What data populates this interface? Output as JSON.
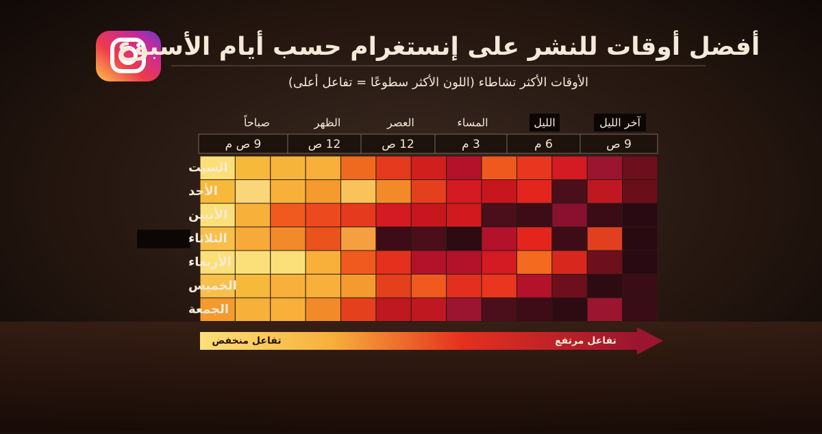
{
  "header": {
    "title": "أفضل أوقات للنشر على إنستغرام حسب أيام الأسبوع",
    "subtitle": "الأوقات الأكثر تشاطاء (اللون الأكثر سطوعًا = تفاعل أعلى)"
  },
  "periods": [
    "صباحاً",
    "الظهر",
    "العصر",
    "المساء",
    "الليل",
    "آخر الليل"
  ],
  "times": [
    "9 ص م",
    "12 ص",
    "12 ص",
    "3 م",
    "6 م",
    "9 ص"
  ],
  "days": [
    "السيت",
    "الأحد",
    "الأنبين",
    "الثلاثاء",
    "الأربعاء",
    "الخميس",
    "الجمعة"
  ],
  "cells": [
    [
      "#fbe07a",
      "#f7b93a",
      "#f7b43a",
      "#f8b03a",
      "#ef6a1e",
      "#e53a1e",
      "#d11f1e",
      "#b3122a",
      "#ee5a1e",
      "#e9361e",
      "#d41a22",
      "#9b1530",
      "#6d0f1c"
    ],
    [
      "#f6b93a",
      "#fad57a",
      "#f8b03a",
      "#f49a2e",
      "#fac35a",
      "#f28a2a",
      "#e5401e",
      "#d41a22",
      "#c8161e",
      "#e3251e",
      "#4a0f1a",
      "#c01820",
      "#6a0e1a"
    ],
    [
      "#fbe07a",
      "#f7b03a",
      "#f05a1e",
      "#ec4a1e",
      "#e53a1e",
      "#d41a22",
      "#c8161e",
      "#d01a1e",
      "#4a0f1a",
      "#3e0c16",
      "#8a1030",
      "#3a0c16",
      "#2a0a12"
    ],
    [
      "#f8c04a",
      "#f7a93a",
      "#f28a2a",
      "#ea521e",
      "#f5a040",
      "#3e0c16",
      "#4a0f1a",
      "#2e0a12",
      "#b3122a",
      "#e3251e",
      "#3e0c16",
      "#e0401e",
      "#2a0a12"
    ],
    [
      "#fbe07a",
      "#fbe07a",
      "#fbe07a",
      "#f8b03a",
      "#f05a1e",
      "#e5301e",
      "#b3122a",
      "#b3122a",
      "#d41a22",
      "#f46a1e",
      "#d8281e",
      "#6d0f1c",
      "#2a0a12"
    ],
    [
      "#f8c04a",
      "#f7b93a",
      "#f8b03a",
      "#f8b03a",
      "#f49a2e",
      "#e5401e",
      "#f05a1e",
      "#e3301e",
      "#e9361e",
      "#b3122a",
      "#6d0f1c",
      "#2e0a12",
      "#3a0c16"
    ],
    [
      "#f49a2e",
      "#f7b03a",
      "#f8b03a",
      "#f28a2a",
      "#e5401e",
      "#c01820",
      "#c01820",
      "#9b1530",
      "#4a0f1a",
      "#3e0c16",
      "#2e0a12",
      "#9b1530",
      "#3a0c16"
    ]
  ],
  "legend": {
    "low": "تفاعل منخفض",
    "high": "تفاعل مرتفع"
  }
}
